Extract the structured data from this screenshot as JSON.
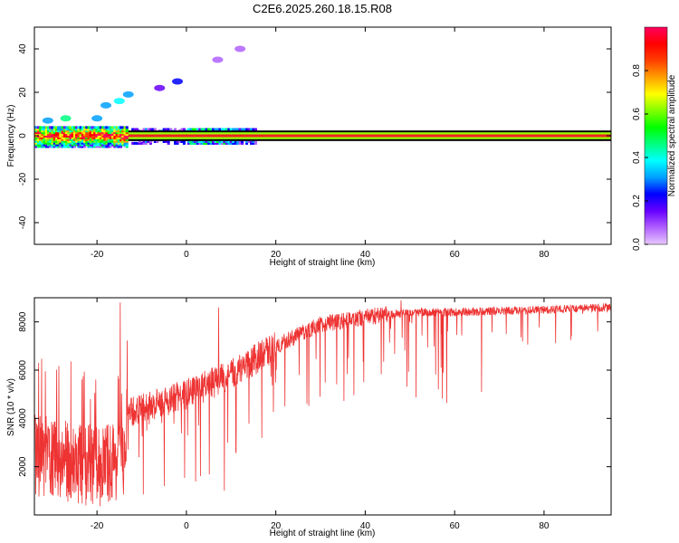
{
  "title": "C2E6.2025.260.18.15.R08",
  "colors": {
    "snr_line": "#ee3333",
    "spectrogram_line": "#ee2222",
    "frame": "#000000"
  },
  "chart_data": [
    {
      "type": "heatmap",
      "name": "spectrogram",
      "title": "C2E6.2025.260.18.15.R08",
      "xlabel": "Height of straight line (km)",
      "ylabel": "Frequency (Hz)",
      "xlim": [
        -34,
        95
      ],
      "ylim": [
        -50,
        50
      ],
      "xticks": [
        -20,
        0,
        20,
        40,
        60,
        80
      ],
      "yticks": [
        -40,
        -20,
        0,
        20,
        40
      ],
      "colorbar": {
        "label": "Normalized spectral amplitude",
        "range": [
          0,
          1
        ],
        "ticks": [
          0.0,
          0.2,
          0.4,
          0.6,
          0.8
        ],
        "tick_labels": [
          "0.0",
          "0.2",
          "0.4",
          "0.6",
          "0.8"
        ],
        "colormap": [
          "#e8c8ff",
          "#b060ff",
          "#6600ff",
          "#0000ff",
          "#00a0ff",
          "#00ffff",
          "#00ff80",
          "#00ff00",
          "#80ff00",
          "#ffff00",
          "#ffa000",
          "#ff4000",
          "#ff0000",
          "#ff0060"
        ]
      },
      "band": {
        "center_hz": 0,
        "halfwidth_hz": 2,
        "x_start": -13,
        "x_end": 95
      },
      "clusters": [
        {
          "x": -31,
          "y": 7,
          "amp": 0.35
        },
        {
          "x": -27,
          "y": 8,
          "amp": 0.45
        },
        {
          "x": -20,
          "y": 8,
          "amp": 0.3
        },
        {
          "x": -18,
          "y": 14,
          "amp": 0.35
        },
        {
          "x": -15,
          "y": 16,
          "amp": 0.4
        },
        {
          "x": -13,
          "y": 19,
          "amp": 0.3
        },
        {
          "x": -6,
          "y": 22,
          "amp": 0.2
        },
        {
          "x": -2,
          "y": 25,
          "amp": 0.25
        },
        {
          "x": 7,
          "y": 35,
          "amp": 0.12
        },
        {
          "x": 12,
          "y": 40,
          "amp": 0.1
        }
      ]
    },
    {
      "type": "line",
      "name": "snr",
      "xlabel": "Height of straight line (km)",
      "ylabel": "SNR (10 * v/v)",
      "xlim": [
        -34,
        95
      ],
      "ylim": [
        0,
        9000
      ],
      "xticks": [
        -20,
        0,
        20,
        40,
        60,
        80
      ],
      "yticks": [
        2000,
        4000,
        6000,
        8000
      ],
      "trend": [
        [
          -34,
          2500
        ],
        [
          -20,
          2000
        ],
        [
          -14,
          2400
        ],
        [
          -13,
          4200
        ],
        [
          0,
          5000
        ],
        [
          10,
          5800
        ],
        [
          20,
          7000
        ],
        [
          30,
          7900
        ],
        [
          40,
          8200
        ],
        [
          50,
          8400
        ],
        [
          60,
          8400
        ],
        [
          70,
          8450
        ],
        [
          80,
          8500
        ],
        [
          95,
          8600
        ]
      ],
      "dips": [
        {
          "x": -14.8,
          "y": 8800
        },
        {
          "x": 7.2,
          "y": 8600
        },
        {
          "x": 8.5,
          "y": 1000
        },
        {
          "x": 48,
          "y": 8900
        },
        {
          "x": 66,
          "y": 5100
        },
        {
          "x": 92,
          "y": 7600
        }
      ]
    }
  ]
}
